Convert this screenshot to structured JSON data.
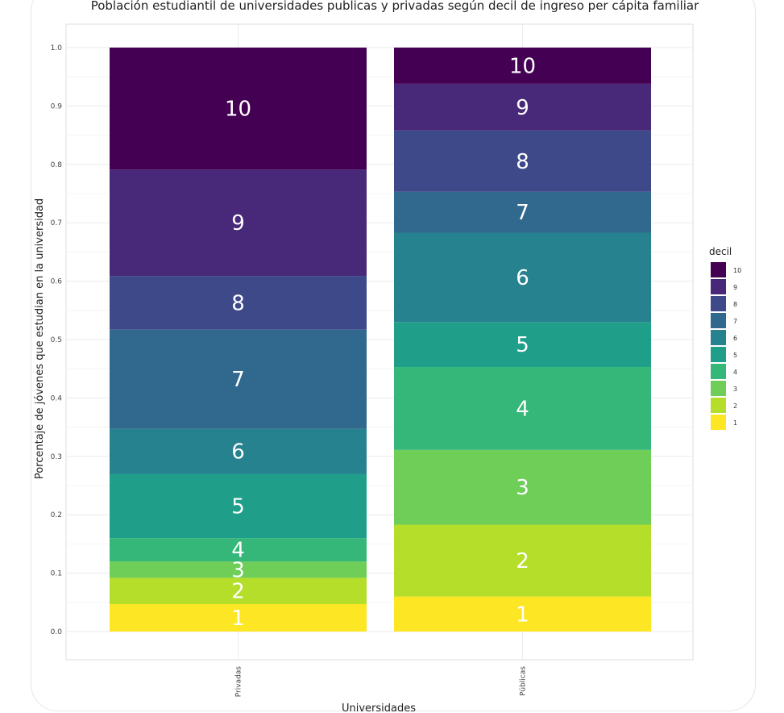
{
  "chart_data": {
    "type": "bar",
    "stacked": true,
    "title": "Población estudiantil de universidades publicas y privadas según decil de ingreso per cápita familiar",
    "xlabel": "Universidades",
    "ylabel": "Porcentaje de jóvenes que estudian en la universidad",
    "categories": [
      "Privadas",
      "Públicas"
    ],
    "ylim": [
      0,
      1
    ],
    "yticks": [
      "0.0",
      "0.1",
      "0.2",
      "0.3",
      "0.4",
      "0.5",
      "0.6",
      "0.7",
      "0.8",
      "0.9",
      "1.0"
    ],
    "grid": true,
    "legend_title": "decil",
    "legend_position": "right",
    "series": [
      {
        "name": "1",
        "color": "#fde725",
        "values": [
          0.047,
          0.06
        ]
      },
      {
        "name": "2",
        "color": "#b5de2b",
        "values": [
          0.045,
          0.123
        ]
      },
      {
        "name": "3",
        "color": "#6ece58",
        "values": [
          0.028,
          0.128
        ]
      },
      {
        "name": "4",
        "color": "#35b779",
        "values": [
          0.04,
          0.142
        ]
      },
      {
        "name": "5",
        "color": "#1f9e89",
        "values": [
          0.11,
          0.077
        ]
      },
      {
        "name": "6",
        "color": "#26828e",
        "values": [
          0.077,
          0.153
        ]
      },
      {
        "name": "7",
        "color": "#31688e",
        "values": [
          0.17,
          0.07
        ]
      },
      {
        "name": "8",
        "color": "#3e4989",
        "values": [
          0.092,
          0.105
        ]
      },
      {
        "name": "9",
        "color": "#482878",
        "values": [
          0.182,
          0.08
        ]
      },
      {
        "name": "10",
        "color": "#440154",
        "values": [
          0.209,
          0.062
        ]
      }
    ]
  }
}
